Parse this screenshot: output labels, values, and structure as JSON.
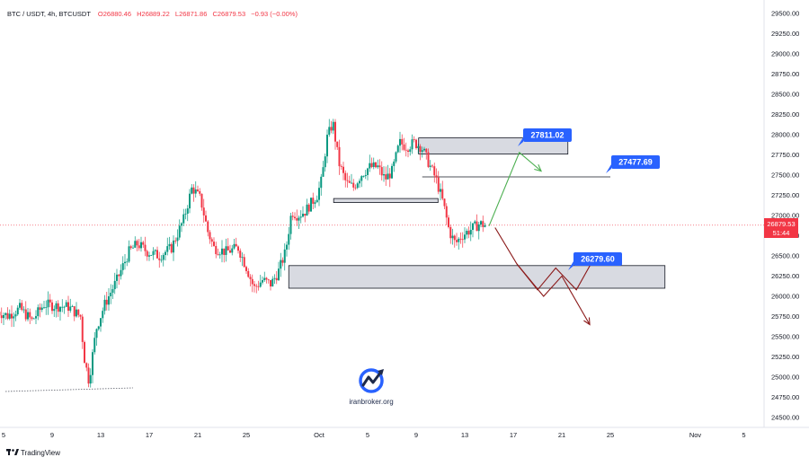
{
  "header": {
    "symbol": "BTC / USDT, 4h, BTCUSDT",
    "open": "O26880.46",
    "high": "H26889.22",
    "low": "L26871.86",
    "close": "C26879.53",
    "change": "−0.93 (−0.00%)"
  },
  "price_label": {
    "value": "26879.53",
    "countdown": "51:44"
  },
  "callouts": {
    "target_high": "27811.02",
    "target_mid": "27477.69",
    "target_low": "26279.60"
  },
  "watermark": {
    "text": "iranbroker.org"
  },
  "footer": {
    "brand": "TradingView"
  },
  "colors": {
    "up": "#089981",
    "down": "#f23645",
    "zone_fill": "#d1d4dc",
    "callout": "#2962ff",
    "bull_arrow": "#4caf50",
    "bear_arrow": "#8b1a1a",
    "price_label": "#f23645"
  },
  "chart_data": {
    "type": "candlestick",
    "timeframe": "4h",
    "ylim": [
      24400,
      29600
    ],
    "y_ticks": [
      24500,
      24750,
      25000,
      25250,
      25500,
      25750,
      26000,
      26250,
      26500,
      26750,
      27000,
      27250,
      27500,
      27750,
      28000,
      28250,
      28500,
      28750,
      29000,
      29250,
      29500
    ],
    "y_tick_labels": [
      "24500.00",
      "24750.00",
      "25000.00",
      "25250.00",
      "25500.00",
      "25750.00",
      "26000.00",
      "26250.00",
      "26500.00",
      "26750.00",
      "27000.00",
      "27250.00",
      "27500.00",
      "27750.00",
      "28000.00",
      "28250.00",
      "28500.00",
      "28750.00",
      "29000.00",
      "29250.00",
      "29500.00"
    ],
    "x_ticks": [
      {
        "label": "5",
        "day": -26
      },
      {
        "label": "9",
        "day": -22
      },
      {
        "label": "13",
        "day": -18
      },
      {
        "label": "17",
        "day": -14
      },
      {
        "label": "21",
        "day": -10
      },
      {
        "label": "25",
        "day": -6
      },
      {
        "label": "Oct",
        "day": 0
      },
      {
        "label": "5",
        "day": 4
      },
      {
        "label": "9",
        "day": 8
      },
      {
        "label": "13",
        "day": 12
      },
      {
        "label": "17",
        "day": 16
      },
      {
        "label": "21",
        "day": 20
      },
      {
        "label": "25",
        "day": 24
      },
      {
        "label": "Nov",
        "day": 31
      },
      {
        "label": "5",
        "day": 35
      }
    ],
    "path": [
      [
        -26.5,
        25820
      ],
      [
        -25.5,
        25760
      ],
      [
        -24.5,
        25850
      ],
      [
        -23.5,
        25700
      ],
      [
        -22.5,
        25900
      ],
      [
        -21.5,
        25880
      ],
      [
        -20.5,
        25870
      ],
      [
        -19.5,
        25750
      ],
      [
        -19.2,
        25250
      ],
      [
        -18.8,
        24950
      ],
      [
        -18.2,
        25600
      ],
      [
        -17.5,
        25900
      ],
      [
        -16.5,
        26200
      ],
      [
        -15.5,
        26550
      ],
      [
        -14.8,
        26650
      ],
      [
        -14,
        26550
      ],
      [
        -13,
        26500
      ],
      [
        -12,
        26600
      ],
      [
        -11,
        26950
      ],
      [
        -10.3,
        27350
      ],
      [
        -9.6,
        27200
      ],
      [
        -9,
        26800
      ],
      [
        -8.5,
        26600
      ],
      [
        -7.5,
        26550
      ],
      [
        -6.5,
        26600
      ],
      [
        -5.8,
        26350
      ],
      [
        -5.2,
        26100
      ],
      [
        -4.5,
        26200
      ],
      [
        -3.8,
        26150
      ],
      [
        -3.2,
        26300
      ],
      [
        -2.6,
        26550
      ],
      [
        -2.1,
        27050
      ],
      [
        -1.6,
        27000
      ],
      [
        -1,
        27050
      ],
      [
        -0.5,
        27150
      ],
      [
        0,
        27250
      ],
      [
        0.4,
        27450
      ],
      [
        0.8,
        27950
      ],
      [
        1.3,
        28150
      ],
      [
        1.8,
        27650
      ],
      [
        2.4,
        27400
      ],
      [
        3,
        27350
      ],
      [
        3.6,
        27500
      ],
      [
        4.3,
        27600
      ],
      [
        5,
        27600
      ],
      [
        5.6,
        27450
      ],
      [
        6.2,
        27550
      ],
      [
        6.8,
        27900
      ],
      [
        7.4,
        27850
      ],
      [
        8,
        27900
      ],
      [
        8.6,
        27850
      ],
      [
        9.2,
        27650
      ],
      [
        9.8,
        27450
      ],
      [
        10.4,
        27150
      ],
      [
        10.9,
        26800
      ],
      [
        11.4,
        26650
      ],
      [
        11.9,
        26750
      ],
      [
        12.4,
        26800
      ],
      [
        12.9,
        26850
      ],
      [
        13.4,
        26900
      ],
      [
        13.8,
        26880
      ]
    ],
    "horizontal_line": {
      "price": 27477.69,
      "from_day": 8.5,
      "to_day": 24
    },
    "zones": [
      {
        "label": "resistance",
        "from_day": 8.2,
        "to_day": 20.5,
        "low": 27760,
        "high": 27960
      },
      {
        "label": "pivot",
        "from_day": 1.2,
        "to_day": 9.8,
        "low": 27160,
        "high": 27210
      },
      {
        "label": "support",
        "from_day": -2.5,
        "to_day": 28.5,
        "low": 26100,
        "high": 26380
      }
    ],
    "scenarios": {
      "bullish": [
        [
          14,
          26870
        ],
        [
          16.5,
          27780
        ],
        [
          18.3,
          27550
        ]
      ],
      "bearish_primary": [
        [
          14.5,
          26850
        ],
        [
          16.3,
          26400
        ],
        [
          18,
          26080
        ],
        [
          19.5,
          26350
        ],
        [
          21.2,
          26080
        ],
        [
          22.8,
          26510
        ]
      ],
      "bearish_alternate": [
        [
          16.3,
          26400
        ],
        [
          18.5,
          26000
        ],
        [
          20,
          26250
        ],
        [
          22.3,
          25650
        ]
      ]
    }
  }
}
